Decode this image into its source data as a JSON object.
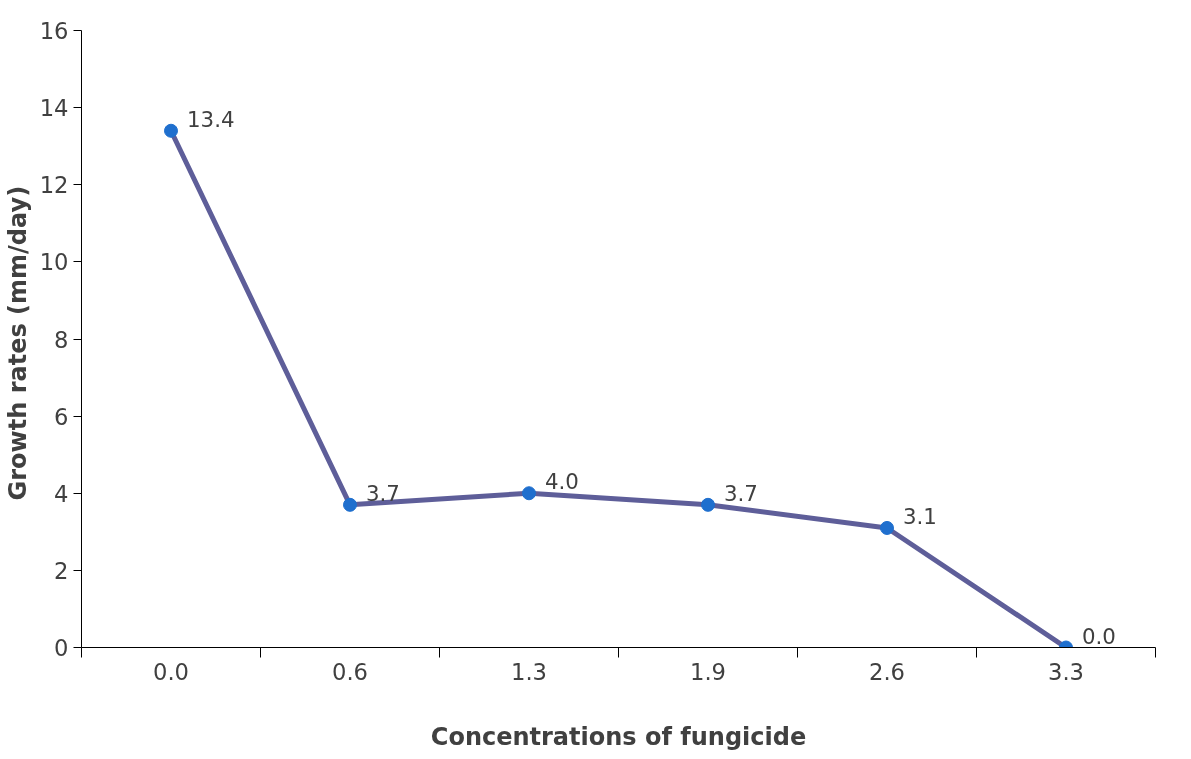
{
  "chart_data": {
    "type": "line",
    "xlabel": "Concentrations of fungicide",
    "ylabel": "Growth rates  (mm/day)",
    "categories": [
      "0.0",
      "0.6",
      "1.3",
      "1.9",
      "2.6",
      "3.3"
    ],
    "series": [
      {
        "color": "#5e5e99",
        "colors": [
          "#1f6fce",
          "#1f6fce",
          "#1f6fce",
          "#1f6fce",
          "#1f6fce",
          "#1f6fce"
        ],
        "values": [
          13.4,
          3.7,
          4.0,
          3.7,
          3.1,
          0.0
        ],
        "value_labels": [
          "13.4",
          "3.7",
          "4.0",
          "3.7",
          "3.1",
          "0.0"
        ]
      }
    ],
    "ylim": [
      0,
      16
    ],
    "yticks": [
      0,
      2,
      4,
      6,
      8,
      10,
      12,
      14,
      16
    ],
    "grid": false,
    "marker": "circle",
    "line_style": "solid"
  }
}
